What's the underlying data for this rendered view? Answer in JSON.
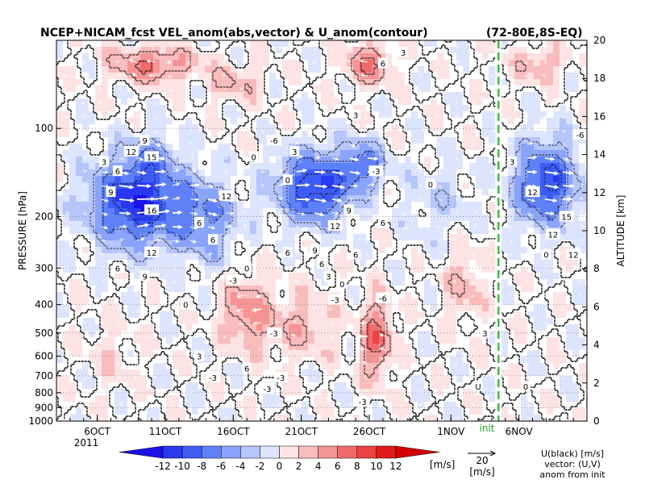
{
  "chart_data": {
    "type": "heatmap",
    "title": "NCEP+NICAM_fcst VEL_anom(abs,vector) & U_anom(contour)",
    "region": "(72-80E,8S-EQ)",
    "ylabel": "PRESSURE [hPa]",
    "y2label": "ALTITUDE [km]",
    "pressure_ticks": [
      100,
      200,
      300,
      400,
      500,
      600,
      700,
      800,
      900,
      1000
    ],
    "pressure_top_hpa": 50,
    "altitude_ticks": [
      0,
      2,
      4,
      6,
      8,
      10,
      12,
      14,
      16,
      18,
      20
    ],
    "x_ticks": [
      {
        "day": 6,
        "label": "6OCT"
      },
      {
        "day": 11,
        "label": "11OCT"
      },
      {
        "day": 16,
        "label": "16OCT"
      },
      {
        "day": 21,
        "label": "21OCT"
      },
      {
        "day": 26,
        "label": "26OCT"
      },
      {
        "day": 32,
        "label": "1NOV"
      },
      {
        "day": 37,
        "label": "6NOV"
      }
    ],
    "x_year_label": "2011",
    "x_start_day": 3,
    "x_end_day": 42,
    "init_marker": {
      "day": 35.5,
      "label": "init"
    },
    "colorbar": {
      "levels": [
        -12,
        -10,
        -8,
        -6,
        -4,
        -2,
        0,
        2,
        4,
        6,
        8,
        10,
        12
      ],
      "labels": [
        "-12",
        "-10",
        "-8",
        "-6",
        "-4",
        "-2",
        "0",
        "2",
        "4",
        "6",
        "8",
        "10",
        "12"
      ],
      "unit": "[m/s]",
      "colors": [
        "#1a12e6",
        "#2a38f0",
        "#3d5cf5",
        "#5f80f7",
        "#8aa4f9",
        "#b6c6fb",
        "#dde4fd",
        "#fde3e3",
        "#f9bcbc",
        "#f59494",
        "#f16b6b",
        "#ec4242",
        "#e01a1a",
        "#d40000"
      ]
    },
    "contour_labels": [
      {
        "day": 6.5,
        "p": 130,
        "value": "3"
      },
      {
        "day": 7.5,
        "p": 140,
        "value": "6"
      },
      {
        "day": 8.5,
        "p": 120,
        "value": "12"
      },
      {
        "day": 10.0,
        "p": 125,
        "value": "15"
      },
      {
        "day": 9.5,
        "p": 110,
        "value": "9"
      },
      {
        "day": 10.0,
        "p": 190,
        "value": "16"
      },
      {
        "day": 7.0,
        "p": 165,
        "value": "9"
      },
      {
        "day": 10.0,
        "p": 265,
        "value": "12"
      },
      {
        "day": 9.5,
        "p": 320,
        "value": "9"
      },
      {
        "day": 7.5,
        "p": 300,
        "value": "6"
      },
      {
        "day": 15.5,
        "p": 170,
        "value": "12"
      },
      {
        "day": 13.5,
        "p": 210,
        "value": "6"
      },
      {
        "day": 14.5,
        "p": 240,
        "value": "6"
      },
      {
        "day": 17.0,
        "p": 300,
        "value": "0"
      },
      {
        "day": 16.0,
        "p": 330,
        "value": "-3"
      },
      {
        "day": 17.5,
        "p": 125,
        "value": "0"
      },
      {
        "day": 19.0,
        "p": 110,
        "value": "-6"
      },
      {
        "day": 20.0,
        "p": 150,
        "value": "0"
      },
      {
        "day": 20.5,
        "p": 120,
        "value": "3"
      },
      {
        "day": 23.5,
        "p": 215,
        "value": "12"
      },
      {
        "day": 22.0,
        "p": 260,
        "value": "9"
      },
      {
        "day": 20.0,
        "p": 265,
        "value": "6"
      },
      {
        "day": 22.5,
        "p": 290,
        "value": "6"
      },
      {
        "day": 24.5,
        "p": 190,
        "value": "9"
      },
      {
        "day": 25.0,
        "p": 270,
        "value": "6"
      },
      {
        "day": 23.0,
        "p": 320,
        "value": "3"
      },
      {
        "day": 24.0,
        "p": 340,
        "value": "0"
      },
      {
        "day": 25.0,
        "p": 90,
        "value": "3"
      },
      {
        "day": 27.0,
        "p": 60,
        "value": "6"
      },
      {
        "day": 28.5,
        "p": 55,
        "value": "3"
      },
      {
        "day": 26.5,
        "p": 140,
        "value": "-3"
      },
      {
        "day": 27.0,
        "p": 210,
        "value": "6"
      },
      {
        "day": 23.5,
        "p": 385,
        "value": "-3"
      },
      {
        "day": 27.0,
        "p": 380,
        "value": "-6"
      },
      {
        "day": 30.5,
        "p": 155,
        "value": "0"
      },
      {
        "day": 36.5,
        "p": 130,
        "value": "3"
      },
      {
        "day": 38.0,
        "p": 165,
        "value": "12"
      },
      {
        "day": 40.5,
        "p": 200,
        "value": "15"
      },
      {
        "day": 39.5,
        "p": 230,
        "value": "12"
      },
      {
        "day": 41.0,
        "p": 270,
        "value": "12"
      },
      {
        "day": 41.5,
        "p": 105,
        "value": "-6"
      },
      {
        "day": 39.0,
        "p": 270,
        "value": "0"
      },
      {
        "day": 12.5,
        "p": 400,
        "value": "0"
      },
      {
        "day": 13.5,
        "p": 600,
        "value": "3"
      },
      {
        "day": 14.5,
        "p": 710,
        "value": "-3"
      },
      {
        "day": 17.0,
        "p": 660,
        "value": "6"
      },
      {
        "day": 19.0,
        "p": 500,
        "value": "-3"
      },
      {
        "day": 19.5,
        "p": 710,
        "value": "-3"
      },
      {
        "day": 18.5,
        "p": 775,
        "value": "-3"
      },
      {
        "day": 25.5,
        "p": 860,
        "value": "-3"
      },
      {
        "day": 34.0,
        "p": 760,
        "value": "U"
      },
      {
        "day": 37.5,
        "p": 760,
        "value": "0"
      },
      {
        "day": 34.5,
        "p": 500,
        "value": "3"
      }
    ],
    "reference_vector": {
      "value": "20",
      "unit": "[m/s]"
    },
    "legend_notes": [
      "U(black) [m/s]",
      "vector: (U,V)",
      "anom from init"
    ]
  }
}
